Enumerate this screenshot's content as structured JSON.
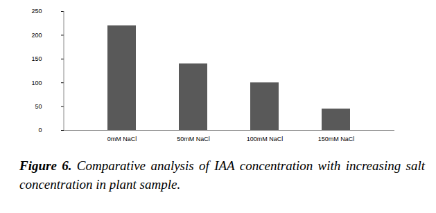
{
  "chart_data": {
    "type": "bar",
    "title": "Figure 6. Comparative analysis of IAA concentration with increasing salt concentration in plant sample.",
    "categories": [
      "0mM NaCl",
      "50mM NaCl",
      "100mM NaCl",
      "150mM NaCl"
    ],
    "values": [
      220,
      140,
      100,
      45
    ],
    "color": "#595959",
    "ylim": [
      0,
      250
    ],
    "yticks": [
      0,
      50,
      100,
      150,
      200,
      250
    ],
    "grid": false
  }
}
